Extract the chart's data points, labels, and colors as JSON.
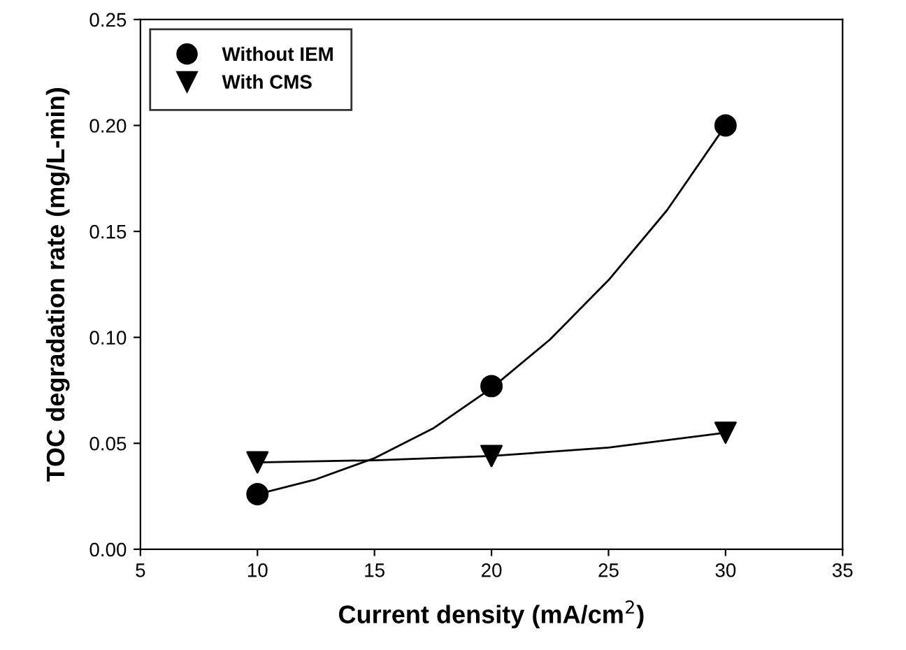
{
  "chart_data": {
    "type": "scatter",
    "xlabel": "Current density (mA/cm$^{2}$)",
    "ylabel": "TOC degradation rate (mg/L-min)",
    "xlim": [
      5,
      35
    ],
    "xticks": [
      5,
      10,
      15,
      20,
      25,
      30,
      35
    ],
    "ylim": [
      0,
      0.25
    ],
    "yticks": [
      {
        "value": 0,
        "label": "0.00"
      },
      {
        "value": 0.05,
        "label": "0.05"
      },
      {
        "value": 0.1,
        "label": "0.10"
      },
      {
        "value": 0.15,
        "label": "0.15"
      },
      {
        "value": 0.2,
        "label": "0.20"
      },
      {
        "value": 0.25,
        "label": "0.25"
      }
    ],
    "grid": false,
    "legend": "top left",
    "series": [
      {
        "name": "Without IEM",
        "marker": "circle",
        "color": "#000000",
        "x": [
          10,
          20,
          30
        ],
        "values": [
          0.026,
          0.077,
          0.2
        ]
      },
      {
        "name": "With CMS",
        "marker": "triangle",
        "color": "#000000",
        "x": [
          10,
          20,
          30
        ],
        "values": [
          0.041,
          0.044,
          0.055
        ]
      },
      {
        "type": "line",
        "marker": "none",
        "color": "#000000",
        "x": [
          10,
          12.5,
          15,
          17.5,
          20,
          22.5,
          25,
          27.5,
          30
        ],
        "values": [
          0.026,
          0.033,
          0.043,
          0.057,
          0.076,
          0.099,
          0.127,
          0.16,
          0.2
        ]
      },
      {
        "type": "line",
        "marker": "none",
        "color": "#000000",
        "x": [
          10,
          15,
          20,
          25,
          30
        ],
        "values": [
          0.041,
          0.042,
          0.044,
          0.048,
          0.055
        ]
      }
    ]
  }
}
